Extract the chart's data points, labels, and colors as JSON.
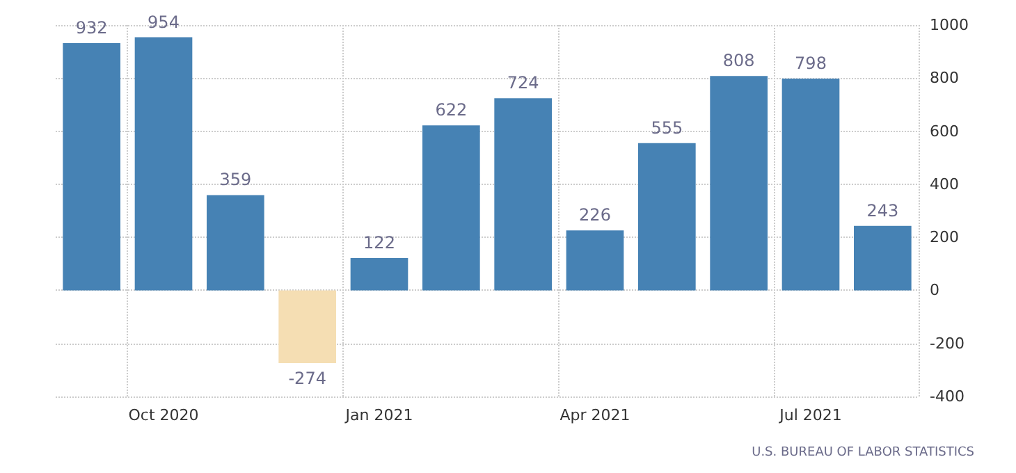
{
  "chart_data": {
    "type": "bar",
    "categories": [
      null,
      "Oct 2020",
      null,
      null,
      "Jan 2021",
      null,
      null,
      "Apr 2021",
      null,
      null,
      "Jul 2021",
      null
    ],
    "values": [
      932,
      954,
      359,
      -274,
      122,
      622,
      724,
      226,
      555,
      808,
      798,
      243
    ],
    "colors": [
      "#4682b4",
      "#4682b4",
      "#4682b4",
      "#f5deb3",
      "#4682b4",
      "#4682b4",
      "#4682b4",
      "#4682b4",
      "#4682b4",
      "#4682b4",
      "#4682b4",
      "#4682b4"
    ],
    "ylim": [
      -400,
      1000
    ],
    "yticks": [
      -400,
      -200,
      0,
      200,
      400,
      600,
      800,
      1000
    ],
    "grid": true,
    "data_labels": true,
    "annotations": [
      "U.S. BUREAU OF LABOR STATISTICS"
    ]
  }
}
